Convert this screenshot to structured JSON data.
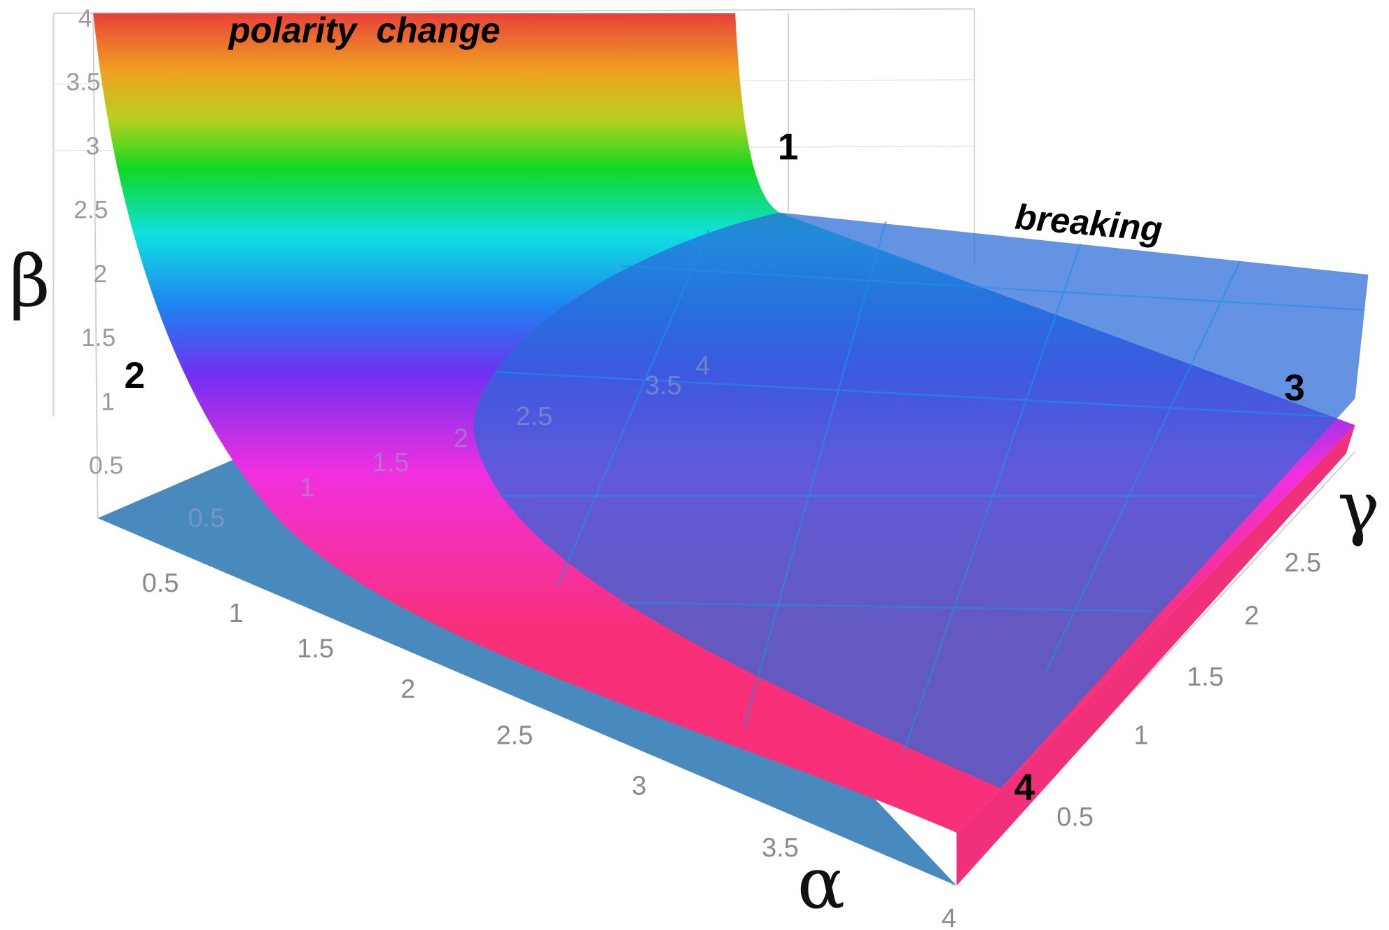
{
  "chart_data": {
    "type": "surface",
    "title": "",
    "axes": {
      "x": {
        "label": "α",
        "range": [
          0,
          4
        ],
        "ticks": [
          "0.5",
          "1",
          "1.5",
          "2",
          "2.5",
          "3",
          "3.5",
          "4"
        ]
      },
      "y": {
        "label": "γ",
        "range": [
          0,
          3
        ],
        "ticks": [
          "0.5",
          "1",
          "1.5",
          "2",
          "2.5"
        ]
      },
      "z": {
        "label": "β",
        "range": [
          0,
          4
        ],
        "ticks": [
          "4",
          "3.5",
          "3",
          "2.5",
          "2",
          "1.5",
          "1",
          "0.5"
        ]
      }
    },
    "back_gamma_ticks": [
      "0.5",
      "1",
      "1.5",
      "2",
      "2.5",
      "3.5",
      "4"
    ],
    "surfaces": [
      {
        "name": "polarity change",
        "coloring": "rainbow by height",
        "colors": [
          "#e8413a",
          "#f0a020",
          "#b8d020",
          "#10d820",
          "#10e0e0",
          "#2080f0",
          "#7030f0",
          "#f030e0",
          "#f8307a"
        ]
      },
      {
        "name": "breaking",
        "color": "#2a78d8"
      },
      {
        "name": "floor",
        "color": "#3a80b8"
      }
    ],
    "annotations": {
      "polarity_change": "polarity  change",
      "breaking": "breaking",
      "point_1": "1",
      "point_2": "2",
      "point_3": "3",
      "point_4": "4"
    },
    "grid": true
  }
}
